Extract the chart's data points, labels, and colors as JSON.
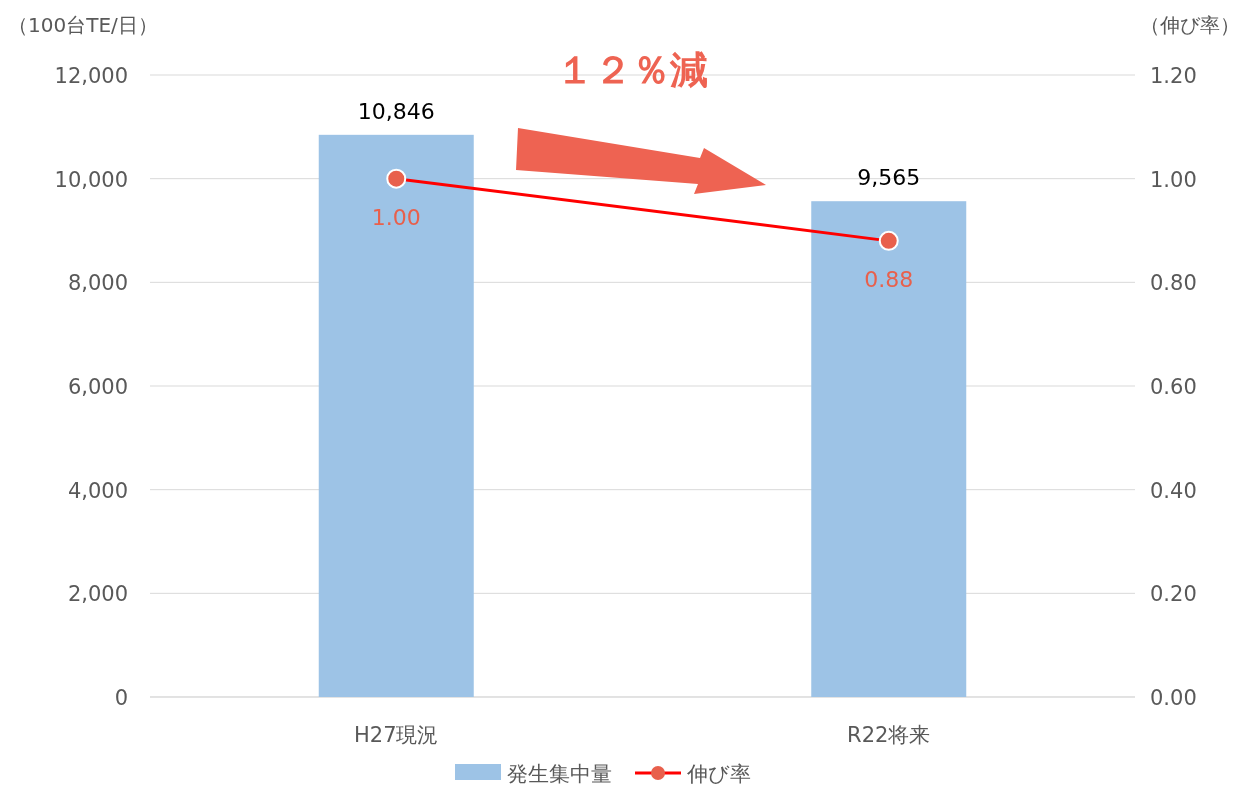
{
  "chart_data": {
    "type": "bar",
    "ylabel": "（100台TE/日）",
    "y2label": "（伸び率）",
    "categories": [
      "H27現況",
      "R22将来"
    ],
    "series": [
      {
        "name": "発生集中量",
        "type": "bar",
        "color": "#9dc3e6",
        "values": [
          10846,
          9565
        ],
        "value_labels": [
          "10,846",
          "9,565"
        ]
      },
      {
        "name": "伸び率",
        "type": "line",
        "axis": "y2",
        "color": "#ff0000",
        "marker": "circle",
        "values": [
          1.0,
          0.88
        ],
        "value_labels": [
          "1.00",
          "0.88"
        ]
      }
    ],
    "ylim": [
      0,
      12000
    ],
    "yticks": [
      {
        "value": 0,
        "label": "0"
      },
      {
        "value": 2000,
        "label": "2,000"
      },
      {
        "value": 4000,
        "label": "4,000"
      },
      {
        "value": 6000,
        "label": "6,000"
      },
      {
        "value": 8000,
        "label": "8,000"
      },
      {
        "value": 10000,
        "label": "10,000"
      },
      {
        "value": 12000,
        "label": "12,000"
      }
    ],
    "y2lim": [
      0,
      1.2
    ],
    "y2ticks": [
      {
        "value": 0,
        "label": "0.00"
      },
      {
        "value": 0.2,
        "label": "0.20"
      },
      {
        "value": 0.4,
        "label": "0.40"
      },
      {
        "value": 0.6,
        "label": "0.60"
      },
      {
        "value": 0.8,
        "label": "0.80"
      },
      {
        "value": 1.0,
        "label": "1.00"
      },
      {
        "value": 1.2,
        "label": "1.20"
      }
    ],
    "grid": "y",
    "legend": "bottom",
    "annotations": [
      "１２％減"
    ]
  }
}
